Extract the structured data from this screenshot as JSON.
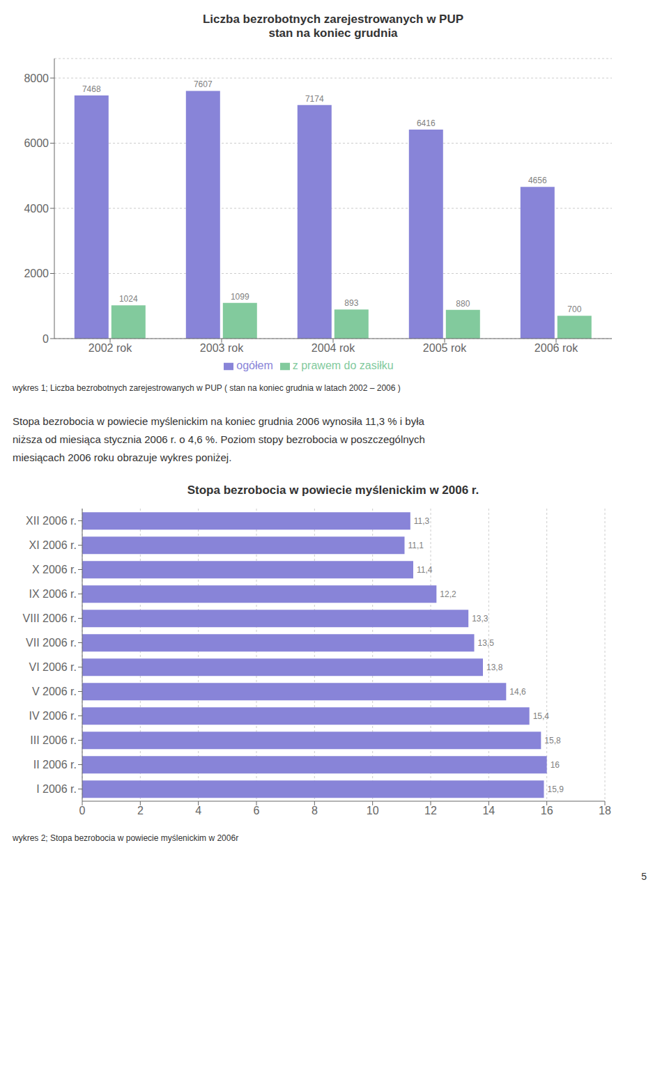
{
  "chart_data": [
    {
      "type": "bar",
      "title": "Liczba bezrobotnych zarejestrowanych w PUP\nstan na koniec grudnia",
      "categories": [
        "2002 rok",
        "2003 rok",
        "2004 rok",
        "2005 rok",
        "2006 rok"
      ],
      "series": [
        {
          "name": "ogółem",
          "color": "#8884d8",
          "values": [
            7468,
            7607,
            7174,
            6416,
            4656
          ]
        },
        {
          "name": "z prawem do zasiłku",
          "color": "#82ca9d",
          "values": [
            1024,
            1099,
            893,
            880,
            700
          ]
        }
      ],
      "ylim": [
        0,
        8600
      ],
      "yticks": [
        0,
        2000,
        4000,
        6000,
        8000
      ],
      "grid": true,
      "legend": "bottom",
      "data_labels": true,
      "annotations": [
        "wykres 1;  Liczba bezrobotnych zarejestrowanych w PUP ( stan na koniec grudnia w latach 2002 – 2006 )",
        "Stopa bezrobocia w powiecie myślenickim na koniec grudnia 2006 wynosiła  11,3 % i była",
        "niższa od miesiąca stycznia 2006 r. o 4,6 %. Poziom stopy bezrobocia w poszczególnych",
        "miesiącach 2006 roku obrazuje wykres poniżej."
      ]
    },
    {
      "type": "bar",
      "orientation": "horizontal",
      "title": "Stopa bezrobocia w powiecie myślenickim w 2006 r.",
      "categories": [
        "XII 2006 r.",
        "XI 2006 r.",
        "X 2006 r.",
        "IX 2006 r.",
        "VIII 2006 r.",
        "VII 2006 r.",
        "VI 2006 r.",
        "V 2006 r.",
        "IV 2006 r.",
        "III 2006 r.",
        "II 2006 r.",
        "I 2006 r."
      ],
      "values": [
        11.3,
        11.1,
        11.4,
        12.2,
        13.3,
        13.5,
        13.8,
        14.6,
        15.4,
        15.8,
        16.0,
        15.9
      ],
      "value_labels": [
        "11,3",
        "11,1",
        "11,4",
        "12,2",
        "13,3",
        "13,5",
        "13,8",
        "14,6",
        "15,4",
        "15,8",
        "16",
        "15,9"
      ],
      "color": "#8884d8",
      "xlim": [
        0,
        18
      ],
      "xticks": [
        0,
        2,
        4,
        6,
        8,
        10,
        12,
        14,
        16,
        18
      ],
      "grid": true,
      "data_labels": true,
      "annotations": [
        "wykres 2;  Stopa bezrobocia w powiecie myślenickim w 2006r",
        "5"
      ]
    }
  ]
}
